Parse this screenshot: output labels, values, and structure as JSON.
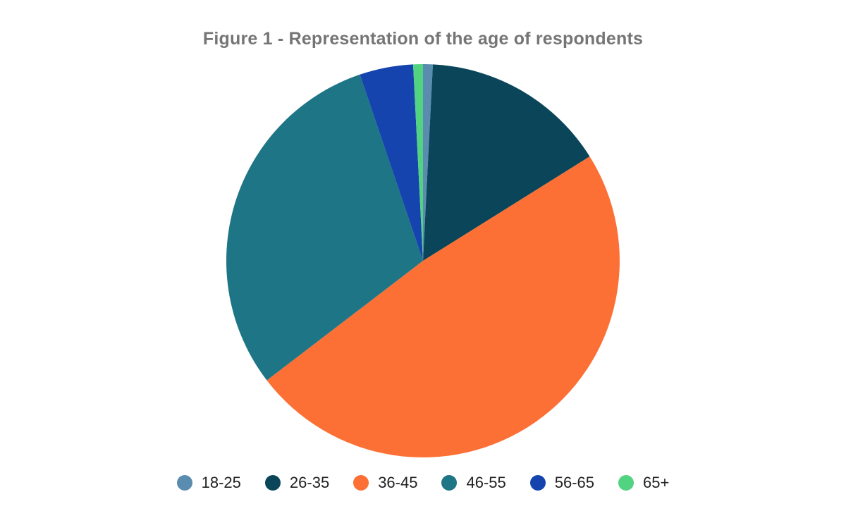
{
  "page": {
    "background_color": "#ffffff",
    "title_color": "#757575",
    "legend_text_color": "#222222"
  },
  "chart_data": {
    "type": "pie",
    "title": "Figure 1 - Representation of the age of respondents",
    "legend_position": "bottom",
    "start_angle_deg": 0,
    "direction": "clockwise",
    "values_are": "percent",
    "categories": [
      "18-25",
      "26-35",
      "36-45",
      "46-55",
      "56-65",
      "65+"
    ],
    "values": [
      0.8,
      15.3,
      48.5,
      30.2,
      4.4,
      0.8
    ],
    "colors": [
      "#5A8CB0",
      "#0B4559",
      "#FC7035",
      "#1E7585",
      "#1544AF",
      "#52D381"
    ]
  }
}
